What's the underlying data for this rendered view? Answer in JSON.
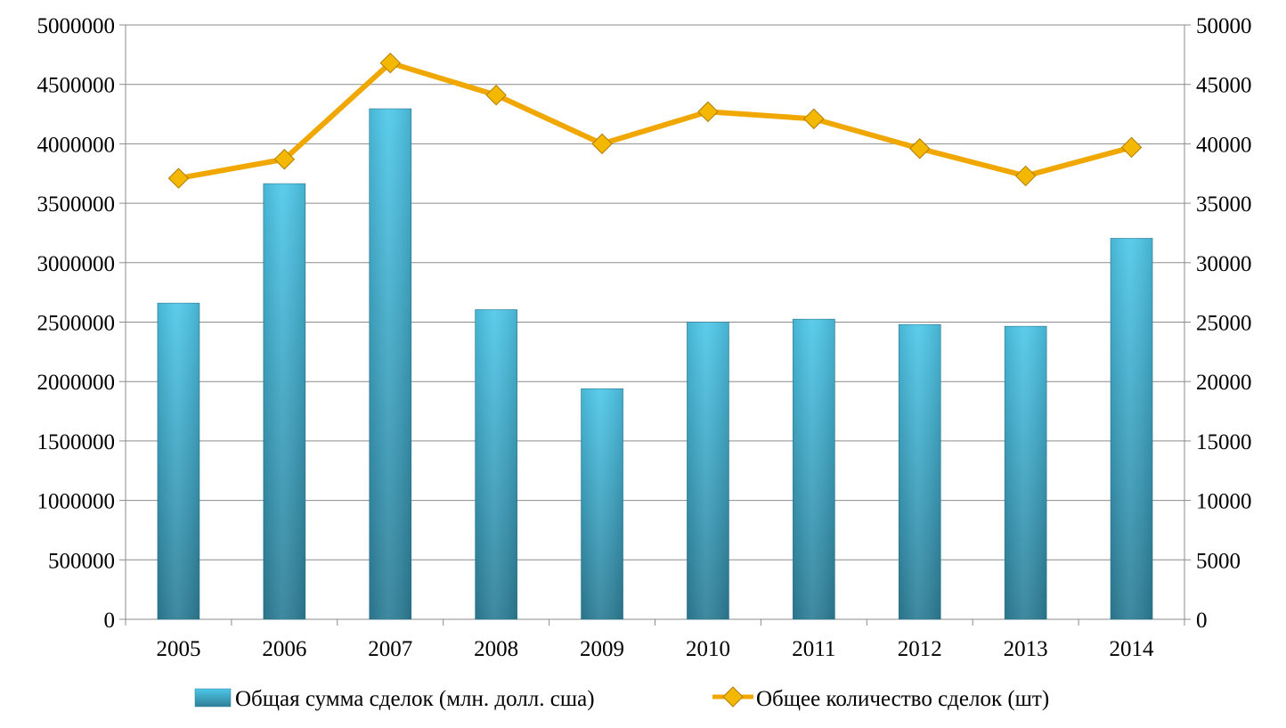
{
  "chart_data": {
    "type": "bar",
    "categories": [
      "2005",
      "2006",
      "2007",
      "2008",
      "2009",
      "2010",
      "2011",
      "2012",
      "2013",
      "2014"
    ],
    "series": [
      {
        "name": "Общая сумма сделок (млн. долл. сша)",
        "type": "bar",
        "axis": "left",
        "values": [
          2660000,
          3665000,
          4295000,
          2605000,
          1940000,
          2500000,
          2525000,
          2480000,
          2465000,
          3205000
        ]
      },
      {
        "name": "Общее количество сделок (шт)",
        "type": "line",
        "axis": "right",
        "values": [
          37100,
          38700,
          46800,
          44100,
          40000,
          42700,
          42100,
          39600,
          37300,
          39700
        ]
      }
    ],
    "left_axis": {
      "ylim": [
        0,
        5000000
      ],
      "ticks": [
        "0",
        "500000",
        "1000000",
        "1500000",
        "2000000",
        "2500000",
        "3000000",
        "3500000",
        "4000000",
        "4500000",
        "5000000"
      ]
    },
    "right_axis": {
      "ylim": [
        0,
        50000
      ],
      "ticks": [
        "0",
        "5000",
        "10000",
        "15000",
        "20000",
        "25000",
        "30000",
        "35000",
        "40000",
        "45000",
        "50000"
      ]
    },
    "grid": true,
    "legend": "bottom",
    "colors": {
      "bar_top": "#4ec8ea",
      "bar_bottom": "#2e7f98",
      "line": "#f0a800",
      "marker": "#f5b800",
      "grid": "#8c8c8c"
    }
  }
}
